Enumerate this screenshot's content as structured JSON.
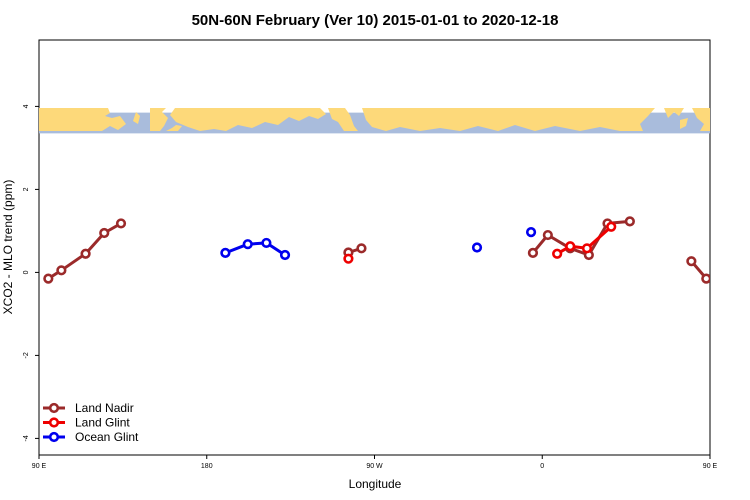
{
  "chart_data": {
    "type": "line",
    "title": "50N-60N February (Ver 10)   2015-01-01 to 2020-12-18",
    "xlabel": "Longitude",
    "ylabel": "XCO2 - MLO trend (ppm)",
    "xlim": [
      90,
      450
    ],
    "ylim": [
      -4.4,
      5.6
    ],
    "x_ticks": [
      {
        "value": 90,
        "label": "90 E"
      },
      {
        "value": 180,
        "label": "180"
      },
      {
        "value": 270,
        "label": "90 W"
      },
      {
        "value": 360,
        "label": "0"
      },
      {
        "value": 450,
        "label": "90 E"
      },
      {
        "value": 540,
        "label": "180"
      }
    ],
    "y_ticks": [
      {
        "value": -4,
        "label": "-4"
      },
      {
        "value": -2,
        "label": "-2"
      },
      {
        "value": 0,
        "label": "0"
      },
      {
        "value": 2,
        "label": "2"
      },
      {
        "value": 4,
        "label": "4"
      }
    ],
    "map_band": {
      "y_top": 3.85,
      "y_bottom": 3.35,
      "ocean_color": "#a9bcdc",
      "land_color": "#fdd97a"
    },
    "legend_position": "bottom-left",
    "series": [
      {
        "name": "Land Nadir",
        "color": "#9b2a2a",
        "segments": [
          [
            [
              95,
              -0.15
            ],
            [
              102,
              0.05
            ],
            [
              115,
              0.45
            ],
            [
              125,
              0.95
            ],
            [
              134,
              1.18
            ]
          ],
          [
            [
              256,
              0.48
            ],
            [
              263,
              0.58
            ]
          ],
          [
            [
              355,
              0.47
            ],
            [
              363,
              0.9
            ],
            [
              375,
              0.58
            ],
            [
              385,
              0.42
            ],
            [
              395,
              1.18
            ],
            [
              407,
              1.23
            ]
          ],
          [
            [
              440,
              0.27
            ],
            [
              448,
              -0.15
            ],
            [
              460,
              0.05
            ],
            [
              471,
              0.45
            ],
            [
              482,
              0.95
            ],
            [
              491,
              1.18
            ]
          ]
        ]
      },
      {
        "name": "Land Glint",
        "color": "#ee0000",
        "segments": [
          [
            [
              256,
              0.33
            ]
          ],
          [
            [
              368,
              0.45
            ],
            [
              375,
              0.63
            ],
            [
              384,
              0.58
            ],
            [
              397,
              1.1
            ]
          ]
        ]
      },
      {
        "name": "Ocean Glint",
        "color": "#0000ee",
        "segments": [
          [
            [
              190,
              0.47
            ],
            [
              202,
              0.68
            ],
            [
              212,
              0.71
            ],
            [
              222,
              0.42
            ]
          ],
          [
            [
              325,
              0.6
            ]
          ],
          [
            [
              354,
              0.97
            ]
          ]
        ]
      }
    ]
  }
}
